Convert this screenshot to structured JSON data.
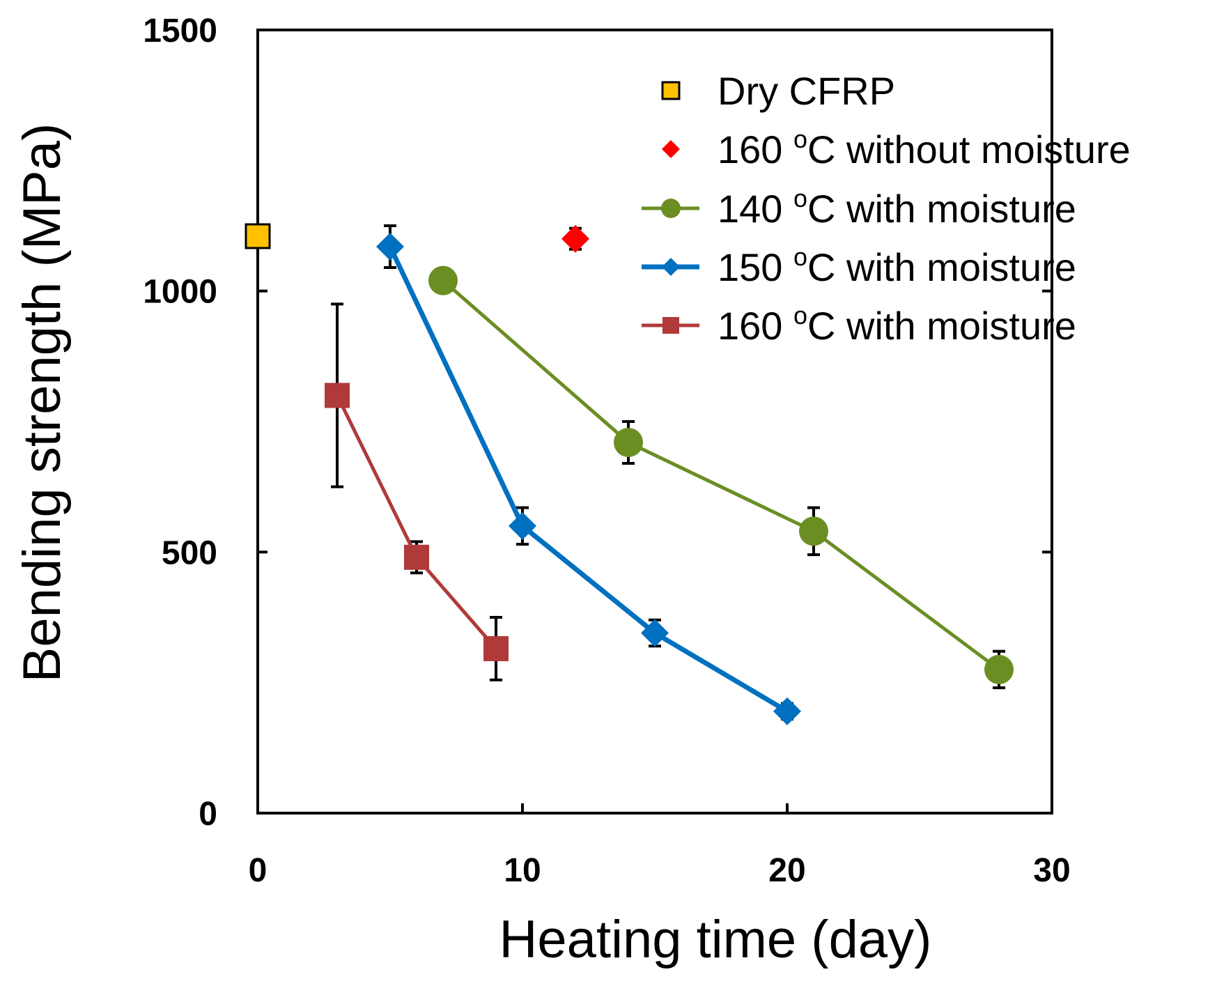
{
  "chart_data": {
    "type": "line",
    "xlabel": "Heating time (day)",
    "ylabel": "Bending strength (MPa)",
    "xlim": [
      0,
      30
    ],
    "ylim": [
      0,
      1500
    ],
    "xticks": [
      "0",
      "10",
      "20",
      "30"
    ],
    "yticks": [
      "0",
      "500",
      "1000",
      "1500"
    ],
    "legend_position": "top-right",
    "series": [
      {
        "name": "Dry CFRP",
        "unit_sup": "",
        "color": "#FFC000",
        "marker": "square-outlined",
        "line": false,
        "x": [
          0
        ],
        "y": [
          1105
        ],
        "err": [
          0
        ]
      },
      {
        "name": "160 oC without moisture",
        "label_pre": "160 ",
        "label_sup": "o",
        "label_post": "C without moisture",
        "color": "#FF0000",
        "marker": "diamond",
        "line": false,
        "x": [
          12
        ],
        "y": [
          1100
        ],
        "err": [
          20
        ]
      },
      {
        "name": "140 oC with moisture",
        "label_pre": "140 ",
        "label_sup": "o",
        "label_post": "C with moisture",
        "color": "#6B8E23",
        "marker": "circle",
        "line": true,
        "x": [
          7,
          14,
          21,
          28
        ],
        "y": [
          1020,
          710,
          540,
          275
        ],
        "err": [
          0,
          40,
          45,
          35
        ]
      },
      {
        "name": "150 oC with moisture",
        "label_pre": "150 ",
        "label_sup": "o",
        "label_post": "C with moisture",
        "color": "#0070C0",
        "marker": "diamond",
        "line": true,
        "x": [
          5,
          10,
          15,
          20
        ],
        "y": [
          1085,
          550,
          345,
          195
        ],
        "err": [
          40,
          35,
          25,
          15
        ]
      },
      {
        "name": "160 oC with moisture",
        "label_pre": "160 ",
        "label_sup": "o",
        "label_post": "C with moisture",
        "color": "#B03A3A",
        "marker": "square",
        "line": true,
        "x": [
          3,
          6,
          9
        ],
        "y": [
          800,
          490,
          315
        ],
        "err": [
          175,
          30,
          60
        ]
      }
    ],
    "legend": [
      {
        "text": "Dry CFRP"
      },
      {
        "pre": "160 ",
        "sup": "o",
        "post": "C without moisture"
      },
      {
        "pre": "140 ",
        "sup": "o",
        "post": "C with moisture"
      },
      {
        "pre": "150 ",
        "sup": "o",
        "post": "C with moisture"
      },
      {
        "pre": "160 ",
        "sup": "o",
        "post": "C with moisture"
      }
    ]
  }
}
